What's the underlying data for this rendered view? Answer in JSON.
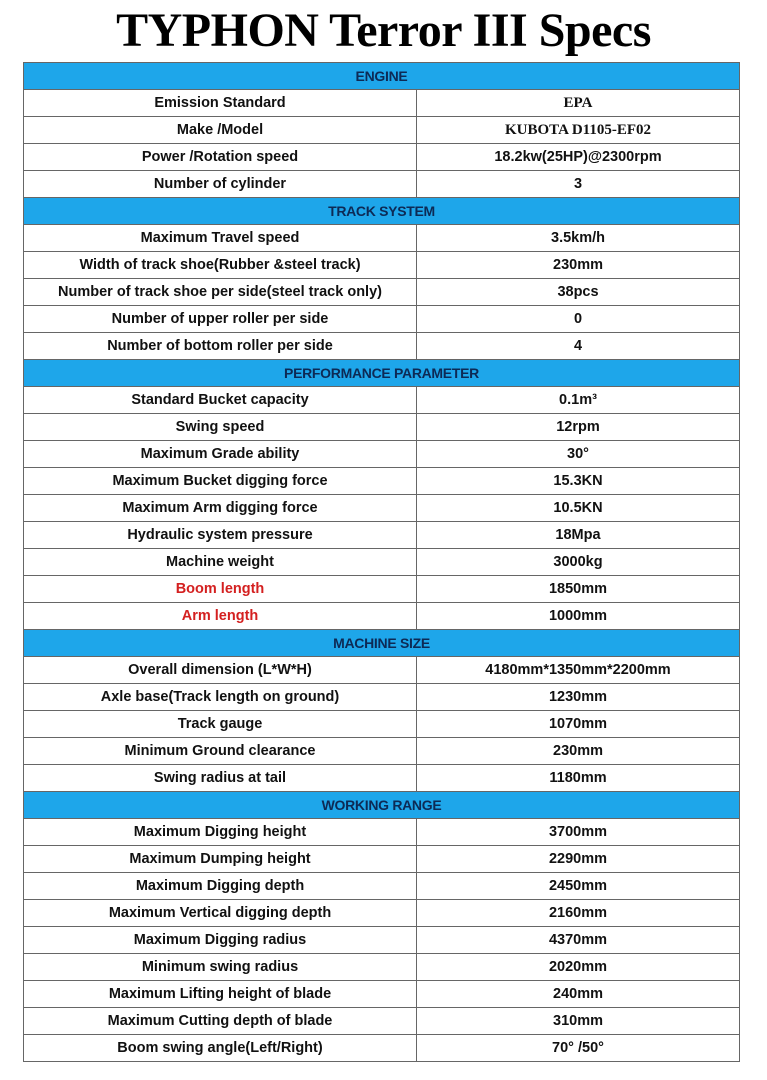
{
  "title": "TYPHON Terror III Specs",
  "colors": {
    "header_bg": "#1ea6ea",
    "header_text": "#0d2a55",
    "highlight_label": "#d42020"
  },
  "sections": [
    {
      "name": "ENGINE",
      "rows": [
        {
          "label": "Emission Standard",
          "value": "EPA",
          "value_style": "serif"
        },
        {
          "label": "Make /Model",
          "value": "KUBOTA D1105-EF02",
          "value_style": "serif"
        },
        {
          "label": "Power /Rotation speed",
          "value": "18.2kw(25HP)@2300rpm"
        },
        {
          "label": "Number of cylinder",
          "value": "3"
        }
      ]
    },
    {
      "name": "TRACK SYSTEM",
      "rows": [
        {
          "label": "Maximum Travel speed",
          "value": "3.5km/h"
        },
        {
          "label": "Width of track shoe(Rubber &steel track)",
          "value": "230mm"
        },
        {
          "label": "Number of track shoe per side(steel track only)",
          "value": "38pcs"
        },
        {
          "label": "Number of upper roller per side",
          "value": "0"
        },
        {
          "label": "Number of bottom roller per side",
          "value": "4"
        }
      ]
    },
    {
      "name": "PERFORMANCE PARAMETER",
      "rows": [
        {
          "label": "Standard Bucket capacity",
          "value": "0.1m³"
        },
        {
          "label": "Swing speed",
          "value": "12rpm"
        },
        {
          "label": "Maximum Grade ability",
          "value": "30°"
        },
        {
          "label": "Maximum Bucket digging force",
          "value": "15.3KN"
        },
        {
          "label": "Maximum Arm digging force",
          "value": "10.5KN"
        },
        {
          "label": "Hydraulic system pressure",
          "value": "18Mpa"
        },
        {
          "label": "Machine weight",
          "value": "3000kg"
        },
        {
          "label": "Boom length",
          "value": "1850mm",
          "highlight": true
        },
        {
          "label": "Arm length",
          "value": "1000mm",
          "highlight": true
        }
      ]
    },
    {
      "name": "MACHINE SIZE",
      "rows": [
        {
          "label": "Overall dimension (L*W*H)",
          "value": "4180mm*1350mm*2200mm"
        },
        {
          "label": "Axle base(Track length on ground)",
          "value": "1230mm"
        },
        {
          "label": "Track gauge",
          "value": "1070mm"
        },
        {
          "label": "Minimum Ground clearance",
          "value": "230mm"
        },
        {
          "label": "Swing radius at tail",
          "value": "1180mm"
        }
      ]
    },
    {
      "name": "WORKING RANGE",
      "rows": [
        {
          "label": "Maximum Digging height",
          "value": "3700mm"
        },
        {
          "label": "Maximum Dumping height",
          "value": "2290mm"
        },
        {
          "label": "Maximum Digging depth",
          "value": "2450mm"
        },
        {
          "label": "Maximum Vertical digging depth",
          "value": "2160mm"
        },
        {
          "label": "Maximum Digging radius",
          "value": "4370mm"
        },
        {
          "label": "Minimum swing radius",
          "value": "2020mm"
        },
        {
          "label": "Maximum Lifting height of blade",
          "value": "240mm"
        },
        {
          "label": "Maximum Cutting depth of blade",
          "value": "310mm"
        },
        {
          "label": "Boom swing angle(Left/Right)",
          "value": "70° /50°"
        }
      ]
    }
  ]
}
